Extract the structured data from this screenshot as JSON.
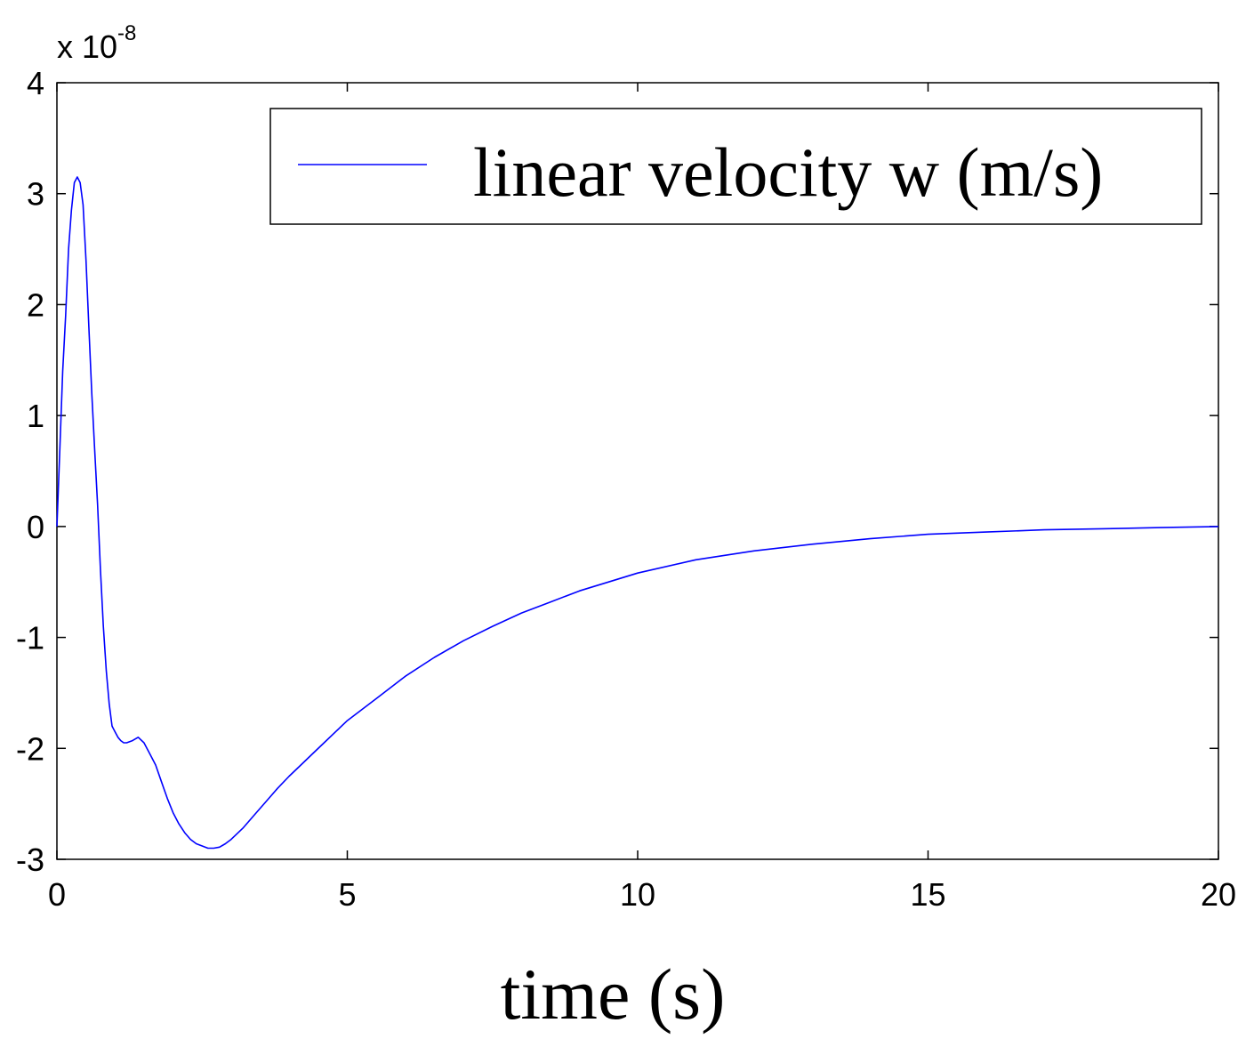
{
  "chart_data": {
    "type": "line",
    "title": "",
    "xlabel": "time (s)",
    "ylabel": "",
    "y_scale_prefix": "x 10",
    "y_scale_exponent": "-8",
    "xlim": [
      0,
      20
    ],
    "ylim": [
      -3,
      4
    ],
    "xticks": [
      0,
      5,
      10,
      15,
      20
    ],
    "xtick_labels": [
      "0",
      "5",
      "10",
      "15",
      "20"
    ],
    "yticks": [
      4,
      3,
      2,
      1,
      0,
      -1,
      -2,
      -3
    ],
    "ytick_labels": [
      "4",
      "3",
      "2",
      "1",
      "0",
      "-1",
      "-2",
      "-3"
    ],
    "grid": false,
    "legend_position": "top-right",
    "series": [
      {
        "name": "linear velocity w (m/s)",
        "color": "#0000ff",
        "x": [
          0,
          0.05,
          0.1,
          0.15,
          0.2,
          0.25,
          0.3,
          0.35,
          0.4,
          0.45,
          0.5,
          0.55,
          0.6,
          0.65,
          0.7,
          0.75,
          0.8,
          0.85,
          0.9,
          0.95,
          1.0,
          1.05,
          1.1,
          1.15,
          1.2,
          1.3,
          1.4,
          1.5,
          1.6,
          1.7,
          1.8,
          1.9,
          2.0,
          2.1,
          2.2,
          2.3,
          2.4,
          2.5,
          2.6,
          2.7,
          2.8,
          2.9,
          3.0,
          3.2,
          3.4,
          3.6,
          3.8,
          4.0,
          4.2,
          4.4,
          4.6,
          4.8,
          5.0,
          5.5,
          6.0,
          6.5,
          7.0,
          7.5,
          8.0,
          8.5,
          9.0,
          9.5,
          10.0,
          11.0,
          12.0,
          13.0,
          14.0,
          15.0,
          16.0,
          17.0,
          18.0,
          19.0,
          20.0
        ],
        "values": [
          0,
          0.7,
          1.4,
          1.9,
          2.5,
          2.85,
          3.1,
          3.15,
          3.1,
          2.9,
          2.4,
          1.8,
          1.2,
          0.7,
          0.2,
          -0.4,
          -0.9,
          -1.3,
          -1.6,
          -1.8,
          -1.85,
          -1.9,
          -1.93,
          -1.95,
          -1.95,
          -1.93,
          -1.9,
          -1.95,
          -2.05,
          -2.15,
          -2.3,
          -2.45,
          -2.58,
          -2.68,
          -2.76,
          -2.82,
          -2.86,
          -2.88,
          -2.9,
          -2.9,
          -2.89,
          -2.86,
          -2.82,
          -2.72,
          -2.6,
          -2.48,
          -2.36,
          -2.25,
          -2.15,
          -2.05,
          -1.95,
          -1.85,
          -1.75,
          -1.55,
          -1.35,
          -1.18,
          -1.03,
          -0.9,
          -0.78,
          -0.68,
          -0.58,
          -0.5,
          -0.42,
          -0.3,
          -0.22,
          -0.16,
          -0.11,
          -0.07,
          -0.05,
          -0.03,
          -0.02,
          -0.01,
          0
        ]
      }
    ]
  }
}
